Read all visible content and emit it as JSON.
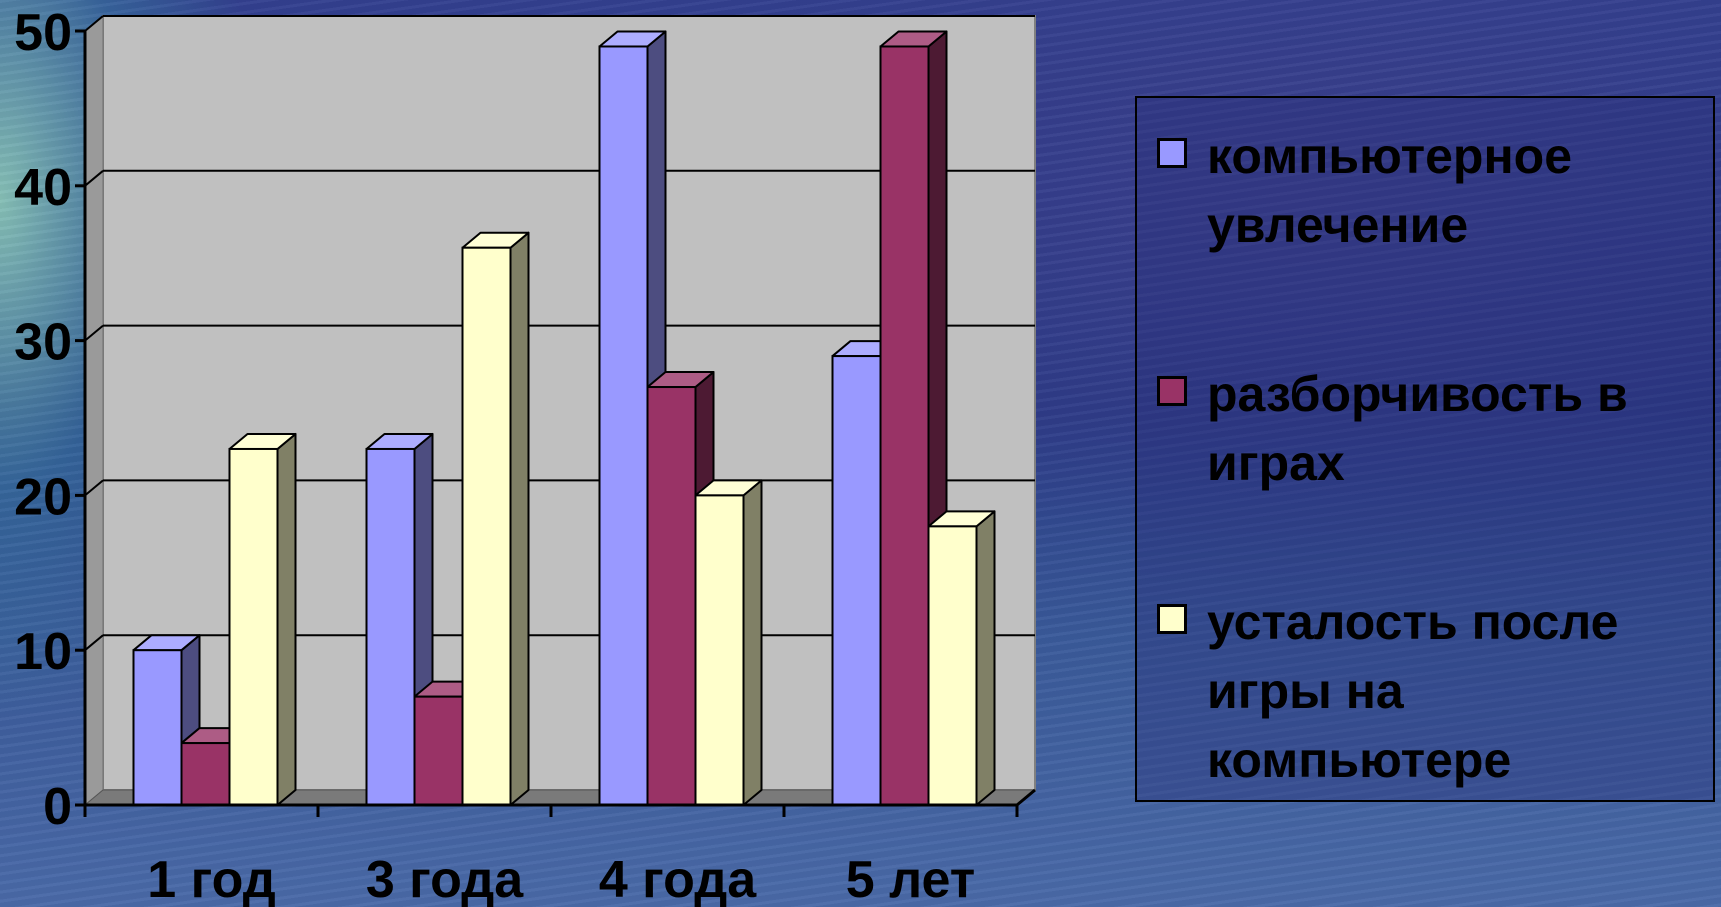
{
  "chart_data": {
    "type": "bar",
    "categories": [
      "1 год",
      "3 года",
      "4 года",
      "5 лет"
    ],
    "series": [
      {
        "name": "компьютерное увлечение",
        "values": [
          10,
          23,
          49,
          29
        ],
        "color": "#9999ff"
      },
      {
        "name": "разборчивость в играх",
        "values": [
          4,
          7,
          27,
          49
        ],
        "color": "#993366"
      },
      {
        "name": "усталость после игры на компьютере",
        "values": [
          23,
          36,
          20,
          18
        ],
        "color": "#ffffcc"
      }
    ],
    "ylim": [
      0,
      50
    ],
    "yticks": [
      "0",
      "10",
      "20",
      "30",
      "40",
      "50"
    ],
    "grid": true,
    "legend_position": "right",
    "plot_background": "#c0c0c0",
    "style": "3d-bar"
  }
}
